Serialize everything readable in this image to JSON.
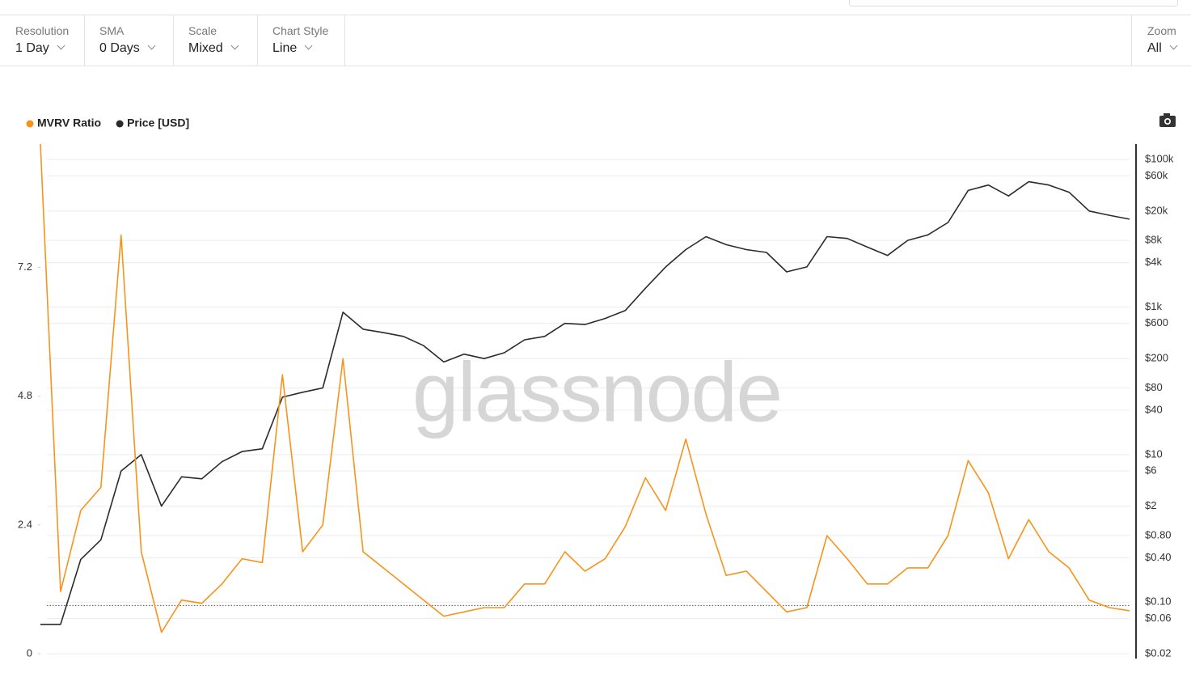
{
  "controls": [
    {
      "label": "Resolution",
      "value": "1 Day"
    },
    {
      "label": "SMA",
      "value": "0 Days"
    },
    {
      "label": "Scale",
      "value": "Mixed"
    },
    {
      "label": "Chart Style",
      "value": "Line"
    }
  ],
  "zoom": {
    "label": "Zoom",
    "value": "All"
  },
  "chart_data": {
    "type": "line",
    "watermark": "glassnode",
    "categories": [
      null,
      null,
      null,
      null,
      null,
      null,
      null,
      null,
      null,
      null,
      null,
      null,
      null,
      null,
      null,
      null,
      null,
      null,
      null,
      null,
      null,
      null,
      null,
      null,
      null,
      null,
      null,
      null,
      null,
      null,
      null,
      null,
      null,
      null,
      null,
      null,
      null,
      null,
      null,
      null,
      null,
      null,
      null,
      null,
      null,
      null,
      null,
      null,
      null,
      null,
      null,
      null,
      null,
      null,
      null
    ],
    "series": [
      {
        "name": "MVRV Ratio",
        "color": "#f7931a",
        "values": [
          9.5,
          1.16,
          2.67,
          3.1,
          7.8,
          1.9,
          0.4,
          1.0,
          0.94,
          1.3,
          1.77,
          1.7,
          5.2,
          1.9,
          2.4,
          5.5,
          1.9,
          1.6,
          1.3,
          1.0,
          0.7,
          0.78,
          0.86,
          0.86,
          1.3,
          1.3,
          1.9,
          1.54,
          1.77,
          2.37,
          3.28,
          2.67,
          4.0,
          2.6,
          1.46,
          1.54,
          1.16,
          0.78,
          0.86,
          2.2,
          1.77,
          1.3,
          1.3,
          1.6,
          1.6,
          2.2,
          3.6,
          3.0,
          1.77,
          2.5,
          1.9,
          1.6,
          1.0,
          0.86,
          0.8
        ]
      },
      {
        "name": "Price [USD]",
        "color": "#2b2b2b",
        "axis": "y2",
        "values": [
          0.05,
          0.05,
          0.38,
          0.7,
          6,
          10,
          2,
          5,
          4.7,
          8,
          11,
          12,
          60,
          70,
          80,
          850,
          500,
          450,
          400,
          300,
          180,
          230,
          200,
          240,
          360,
          400,
          600,
          580,
          700,
          900,
          1800,
          3500,
          6000,
          9000,
          7000,
          6000,
          5500,
          3000,
          3500,
          9000,
          8500,
          6500,
          5000,
          8000,
          9500,
          14000,
          38000,
          45000,
          32000,
          50000,
          45000,
          36000,
          20000,
          17500,
          15500
        ]
      }
    ],
    "ylim": [
      0,
      9.5
    ],
    "yticks": [
      0,
      2.4,
      4.8,
      7.2
    ],
    "y2lim": [
      0.02,
      162000
    ],
    "y2scale": "log",
    "y2ticks": [
      {
        "value": 100000,
        "label": "$100k"
      },
      {
        "value": 60000,
        "label": "$60k"
      },
      {
        "value": 20000,
        "label": "$20k"
      },
      {
        "value": 8000,
        "label": "$8k"
      },
      {
        "value": 4000,
        "label": "$4k"
      },
      {
        "value": 1000,
        "label": "$1k"
      },
      {
        "value": 600,
        "label": "$600"
      },
      {
        "value": 200,
        "label": "$200"
      },
      {
        "value": 80,
        "label": "$80"
      },
      {
        "value": 40,
        "label": "$40"
      },
      {
        "value": 10,
        "label": "$10"
      },
      {
        "value": 6,
        "label": "$6"
      },
      {
        "value": 2,
        "label": "$2"
      },
      {
        "value": 0.8,
        "label": "$0.80"
      },
      {
        "value": 0.4,
        "label": "$0.40"
      },
      {
        "value": 0.1,
        "label": "$0.10"
      },
      {
        "value": 0.06,
        "label": "$0.06"
      },
      {
        "value": 0.02,
        "label": "$0.02"
      }
    ],
    "reference_line": 0.9,
    "grid": true,
    "legend": "top-left"
  }
}
